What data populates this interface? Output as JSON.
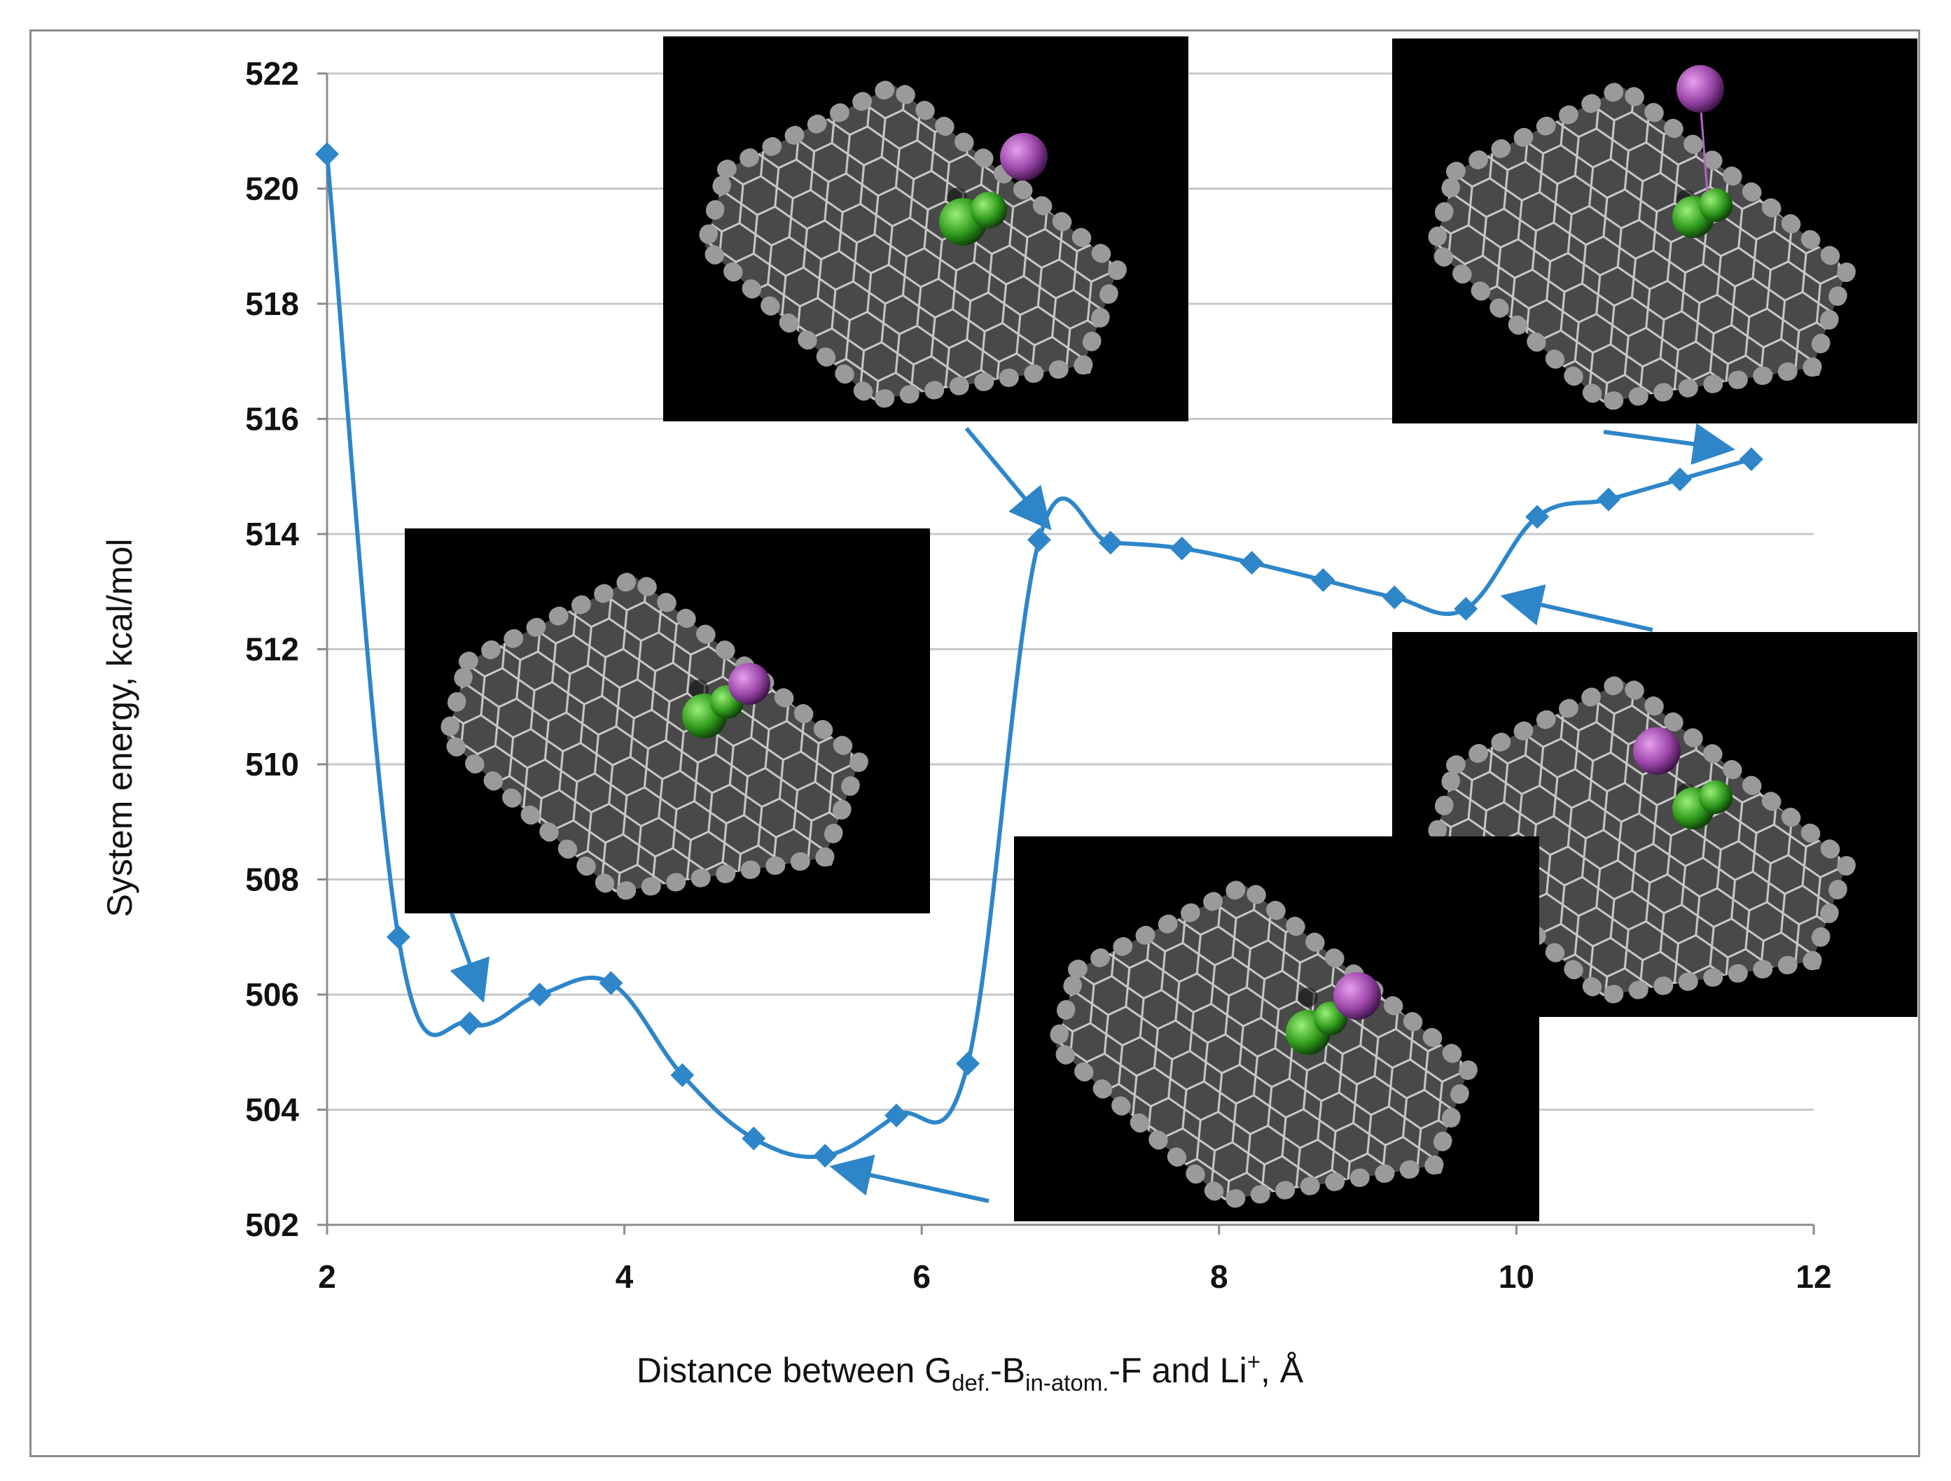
{
  "chart_data": {
    "type": "line",
    "title": "",
    "xlabel_parts": {
      "prefix": "Distance between G",
      "sub1": "def.",
      "mid1": "-B",
      "sub2": "in-atom.",
      "mid2": "-F and Li",
      "sup": "+",
      "suffix": ", Å"
    },
    "ylabel": "System energy, kcal/mol",
    "xlim": [
      2,
      12
    ],
    "ylim": [
      502,
      522
    ],
    "xticks": [
      "2",
      "4",
      "6",
      "8",
      "10",
      "12"
    ],
    "yticks": [
      "502",
      "504",
      "506",
      "508",
      "510",
      "512",
      "514",
      "516",
      "518",
      "520",
      "522"
    ],
    "grid": "horizontal",
    "series": [
      {
        "name": "System energy",
        "color": "#2e86c9",
        "marker": "diamond",
        "x": [
          2.0,
          2.48,
          2.96,
          3.43,
          3.91,
          4.39,
          4.87,
          5.35,
          5.83,
          6.31,
          6.79,
          7.27,
          7.75,
          8.22,
          8.7,
          9.18,
          9.66,
          10.14,
          10.62,
          11.1,
          11.58
        ],
        "y": [
          520.6,
          507.0,
          505.5,
          506.0,
          506.2,
          504.6,
          503.5,
          503.2,
          503.9,
          504.8,
          513.9,
          513.85,
          513.75,
          513.5,
          513.2,
          512.9,
          512.7,
          514.3,
          514.6,
          514.95,
          515.3
        ]
      }
    ],
    "annotations": [
      {
        "type": "image",
        "description": "molecular-model",
        "points_to_x": 3.0,
        "points_to_y": 506.1
      },
      {
        "type": "image",
        "description": "molecular-model",
        "points_to_x": 6.8,
        "points_to_y": 514.2
      },
      {
        "type": "image",
        "description": "molecular-model",
        "points_to_x": 11.4,
        "points_to_y": 515.4
      },
      {
        "type": "image",
        "description": "molecular-model",
        "points_to_x": 5.4,
        "points_to_y": 503.1
      },
      {
        "type": "image",
        "description": "molecular-model",
        "points_to_x": 9.95,
        "points_to_y": 512.9
      }
    ]
  }
}
